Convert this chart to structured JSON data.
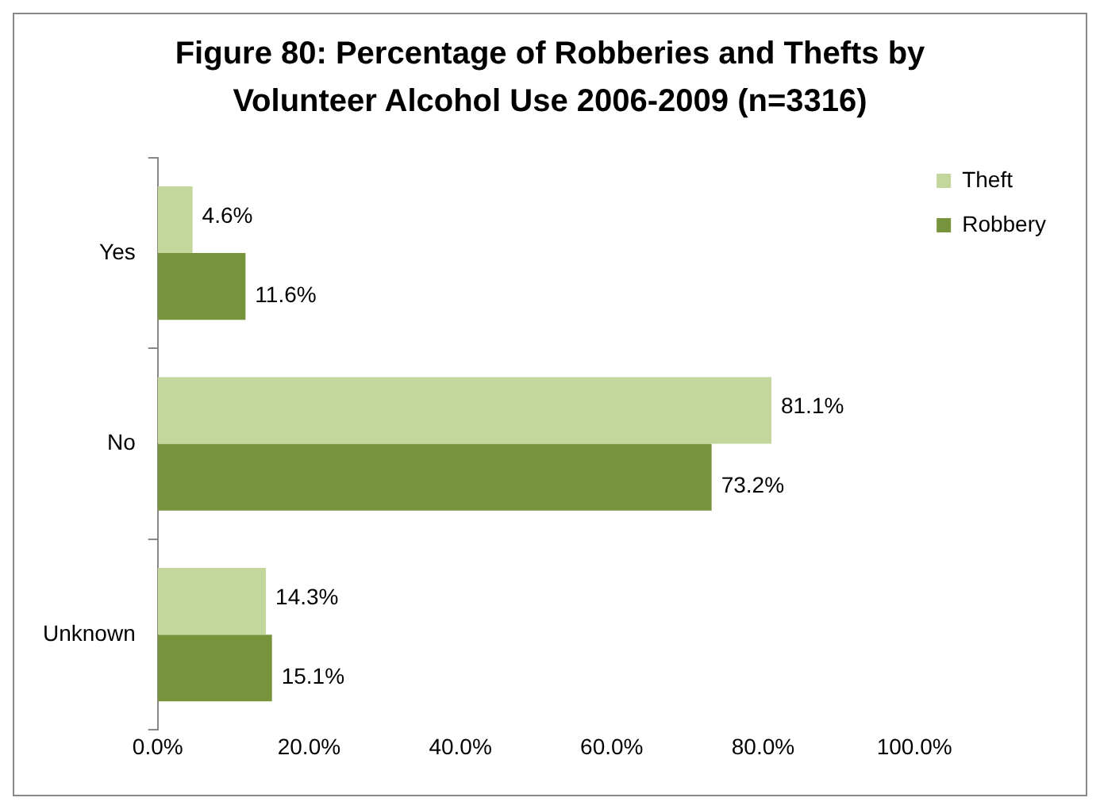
{
  "chart_data": {
    "type": "bar",
    "orientation": "horizontal",
    "title": "Figure 80:  Percentage of Robberies and Thefts by Volunteer Alcohol Use 2006-2009 (n=3316)",
    "categories": [
      "Yes",
      "No",
      "Unknown"
    ],
    "series": [
      {
        "name": "Theft",
        "color": "#c3d69b",
        "values": [
          4.6,
          81.1,
          14.3
        ],
        "value_labels": [
          "4.6%",
          "81.1%",
          "14.3%"
        ]
      },
      {
        "name": "Robbery",
        "color": "#77933c",
        "values": [
          11.6,
          73.2,
          15.1
        ],
        "value_labels": [
          "11.6%",
          "73.2%",
          "15.1%"
        ]
      }
    ],
    "xlim": [
      0,
      100
    ],
    "xticks": [
      {
        "value": 0,
        "label": "0.0%"
      },
      {
        "value": 20,
        "label": "20.0%"
      },
      {
        "value": 40,
        "label": "40.0%"
      },
      {
        "value": 60,
        "label": "60.0%"
      },
      {
        "value": 80,
        "label": "80.0%"
      },
      {
        "value": 100,
        "label": "100.0%"
      }
    ],
    "grid": false,
    "legend": "right"
  }
}
